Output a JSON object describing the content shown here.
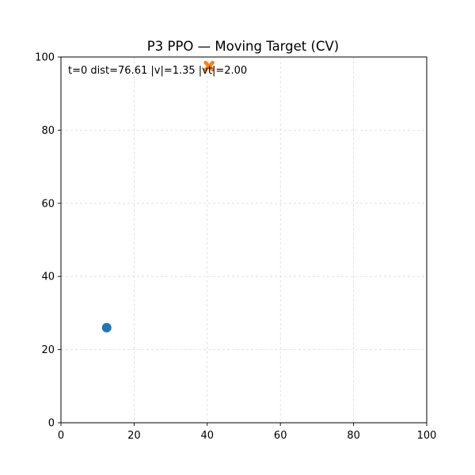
{
  "chart_data": {
    "type": "scatter",
    "title": "P3 PPO — Moving Target (CV)",
    "xlabel": "",
    "ylabel": "",
    "xlim": [
      0,
      100
    ],
    "ylim": [
      0,
      100
    ],
    "xticks": [
      0,
      20,
      40,
      60,
      80,
      100
    ],
    "yticks": [
      0,
      20,
      40,
      60,
      80,
      100
    ],
    "xtick_labels": [
      "0",
      "20",
      "40",
      "60",
      "80",
      "100"
    ],
    "ytick_labels": [
      "0",
      "20",
      "40",
      "60",
      "80",
      "100"
    ],
    "grid": true,
    "annotation": "t=0  dist=76.61  |v|=1.35  |vt|=2.00",
    "series": [
      {
        "marker": "circle",
        "color": "#1f77b4",
        "points": [
          {
            "x": 12.5,
            "y": 26
          }
        ]
      },
      {
        "marker": "x-filled",
        "color": "#ff7f0e",
        "points": [
          {
            "x": 40.5,
            "y": 97.5
          }
        ]
      }
    ]
  }
}
